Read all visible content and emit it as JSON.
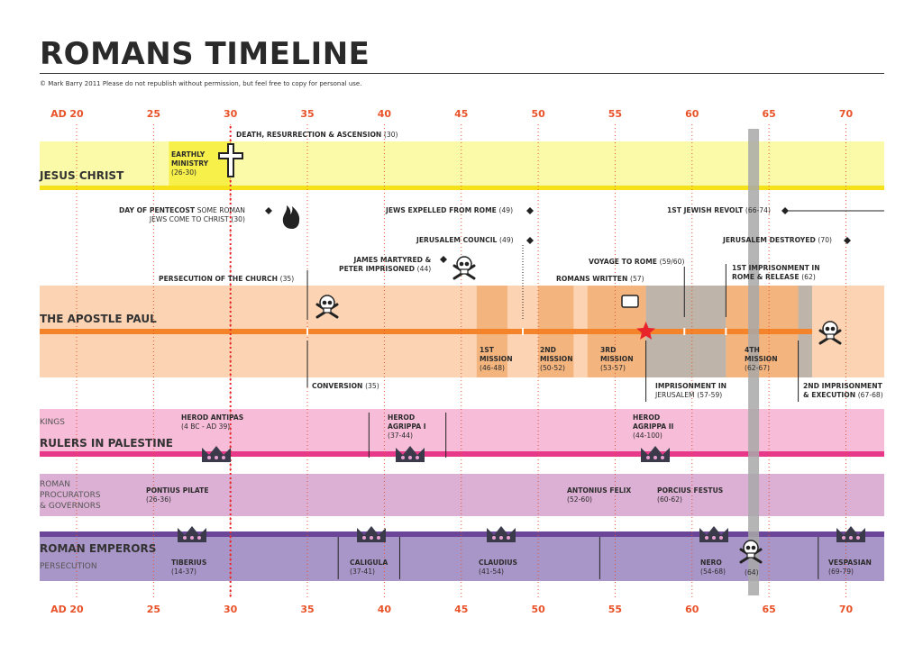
{
  "header": {
    "title": "ROMANS TIMELINE",
    "copyright": "© Mark Barry 2011  Please do not republish without permission, but feel free to copy for personal use."
  },
  "colors": {
    "accent": "#e8532a",
    "jesus_band": "#fafaa8",
    "jesus_line": "#f5e21b",
    "ministry": "#f7f04a",
    "paul_band": "#fcd4b4",
    "paul_mission": "#f4b47e",
    "paul_line": "#f5832a",
    "imprisonment": "#bfb4aa",
    "rulers_band": "#f7bcd8",
    "rulers_line": "#e8388a",
    "procurators_band": "#dcb0d4",
    "emperors_band": "#a996c8",
    "emperors_line": "#6a4598",
    "year64": "#a8a8a8"
  },
  "chart_data": {
    "type": "timeline",
    "title": "ROMANS TIMELINE",
    "x_axis_prefix": "AD",
    "xlim": [
      17.5,
      72.5
    ],
    "ticks": [
      20,
      25,
      30,
      35,
      40,
      45,
      50,
      55,
      60,
      65,
      70
    ],
    "highlight_year": 64,
    "death_line_year": 30,
    "bands": {
      "jesus": {
        "title": "JESUS CHRIST"
      },
      "paul": {
        "title": "THE APOSTLE PAUL"
      },
      "rulers": {
        "sub": "KINGS",
        "title": "RULERS IN PALESTINE"
      },
      "procurators": {
        "sub": [
          "ROMAN",
          "PROCURATORS",
          "& GOVERNORS"
        ]
      },
      "emperors": {
        "title": "ROMAN EMPERORS",
        "sub": "PERSECUTION"
      }
    },
    "jesus": {
      "ministry": {
        "start": 26,
        "end": 30,
        "label": [
          "EARTHLY",
          "MINISTRY"
        ],
        "years": "(26-30)"
      },
      "death": {
        "label": "DEATH, RESURRECTION & ASCENSION",
        "years": "(30)",
        "year": 30
      }
    },
    "events": [
      {
        "label": "DAY OF PENTECOST",
        "rest": "SOME ROMAN",
        "line2": "JEWS COME TO CHRIST",
        "years": "(30)",
        "year": 30
      },
      {
        "label": "JEWS EXPELLED FROM ROME",
        "years": "(49)",
        "year": 49
      },
      {
        "label": "JERUSALEM COUNCIL",
        "years": "(49)",
        "year": 49
      },
      {
        "label": "1ST JEWISH REVOLT",
        "years": "(66-74)",
        "year": 66
      },
      {
        "label": "JERUSALEM DESTROYED",
        "years": "(70)",
        "year": 70
      },
      {
        "label": "JAMES MARTYRED &",
        "line2": "PETER IMPRISONED",
        "years": "(44)",
        "year": 44
      }
    ],
    "paul_events": [
      {
        "label": "PERSECUTION  OF THE CHURCH",
        "years": "(35)",
        "year": 35
      },
      {
        "label": "CONVERSION",
        "years": "(35)",
        "year": 35
      },
      {
        "label": "VOYAGE  TO ROME",
        "years": "(59/60)",
        "year": 59.5
      },
      {
        "label": "ROMANS WRITTEN",
        "years": "(57)",
        "year": 57
      },
      {
        "label": "1ST IMPRISONMENT IN",
        "line2": "ROME & RELEASE",
        "years": "(62)",
        "year": 62
      },
      {
        "label": "IMPRISONMENT IN",
        "line2": "JERUSALEM",
        "years": "(57-59)",
        "year": 57
      },
      {
        "label": "2ND IMPRISONMENT",
        "line2": "& EXECUTION",
        "years": "(67-68)",
        "year": 67
      }
    ],
    "missions": [
      {
        "name": [
          "1ST",
          "MISSION"
        ],
        "years": "(46-48)",
        "start": 46,
        "end": 48
      },
      {
        "name": [
          "2ND",
          "MISSION"
        ],
        "years": "(50-52)",
        "start": 50,
        "end": 52.3
      },
      {
        "name": [
          "3RD",
          "MISSION"
        ],
        "years": "(53-57)",
        "start": 53.2,
        "end": 57
      },
      {
        "name": [
          "4TH",
          "MISSION"
        ],
        "years": "(62-67)",
        "start": 62.2,
        "end": 66.9
      }
    ],
    "imprisonments": [
      {
        "start": 57,
        "end": 62.2
      },
      {
        "start": 66.9,
        "end": 67.8
      }
    ],
    "kings": [
      {
        "name": "HEROD ANTIPAS",
        "years": "(4 BC - AD 39)",
        "end": 39
      },
      {
        "name": "HEROD",
        "line2": "AGRIPPA I",
        "years": "(37-44)",
        "start": 39,
        "end": 44
      },
      {
        "name": "HEROD",
        "line2": "AGRIPPA II",
        "years": "(44-100)",
        "start": 44
      }
    ],
    "procurators": [
      {
        "name": "PONTIUS PILATE",
        "years": "(26-36)",
        "start": 26
      },
      {
        "name": "ANTONIUS FELIX",
        "years": "(52-60)",
        "start": 52
      },
      {
        "name": "PORCIUS FESTUS",
        "years": "(60-62)",
        "start": 60
      }
    ],
    "emperors": [
      {
        "name": "TIBERIUS",
        "years": "(14-37)",
        "end": 37
      },
      {
        "name": "CALIGULA",
        "years": "(37-41)",
        "start": 37,
        "end": 41
      },
      {
        "name": "CLAUDIUS",
        "years": "(41-54)",
        "start": 41,
        "end": 54
      },
      {
        "name": "NERO",
        "years": "(54-68)",
        "start": 54,
        "end": 68
      },
      {
        "name": "VESPASIAN",
        "years": "(69-79)",
        "start": 69
      }
    ],
    "nero_persecution": {
      "years": "(64)",
      "year": 64
    }
  },
  "icons": {
    "cross": "cross-icon",
    "fire": "fire-icon",
    "skull": "skull-crossbones-icon",
    "crown": "crown-icon",
    "scroll": "scroll-icon",
    "star": "star-icon"
  }
}
